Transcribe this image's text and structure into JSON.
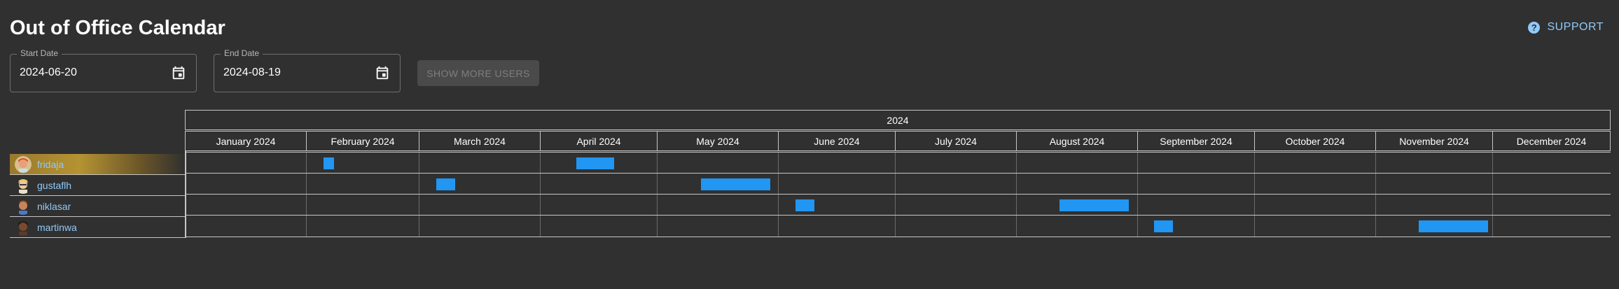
{
  "header": {
    "title": "Out of Office Calendar",
    "support_label": "SUPPORT"
  },
  "filters": {
    "start_date": {
      "label": "Start Date",
      "value": "2024-06-20"
    },
    "end_date": {
      "label": "End Date",
      "value": "2024-08-19"
    },
    "show_more_label": "SHOW MORE USERS"
  },
  "calendar": {
    "year": "2024",
    "months": [
      "January 2024",
      "February 2024",
      "March 2024",
      "April 2024",
      "May 2024",
      "June 2024",
      "July 2024",
      "August 2024",
      "September 2024",
      "October 2024",
      "November 2024",
      "December 2024"
    ],
    "users": [
      {
        "name": "fridaja",
        "highlighted": true,
        "avatar_color": "#e8a07a",
        "hair_color": "#d8502a"
      },
      {
        "name": "gustaflh",
        "highlighted": false,
        "avatar_color": "#f0c8a0",
        "hair_color": "#e8c860"
      },
      {
        "name": "niklasar",
        "highlighted": false,
        "avatar_color": "#c8845a",
        "hair_color": "#8a4a20"
      },
      {
        "name": "martinwa",
        "highlighted": false,
        "avatar_color": "#7a4a30",
        "hair_color": "#2a1a10"
      }
    ]
  },
  "colors": {
    "background": "#303030",
    "bar": "#2196f3",
    "accent": "#90caf9",
    "highlight": "#b59332"
  }
}
